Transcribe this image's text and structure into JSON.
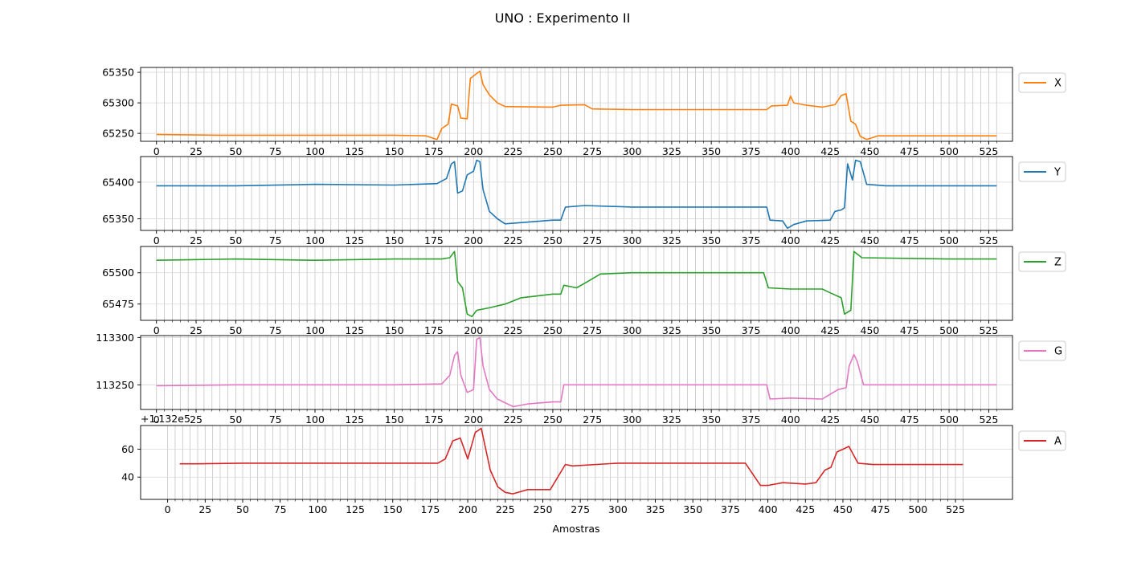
{
  "chart_data": {
    "type": "line",
    "title": "UNO : Experimento II",
    "xlabel": "Amostras",
    "x_ticks": [
      0,
      25,
      50,
      75,
      100,
      125,
      150,
      175,
      200,
      225,
      250,
      275,
      300,
      325,
      350,
      375,
      400,
      425,
      450,
      475,
      500,
      525
    ],
    "x_tick_labels": [
      "0",
      "25",
      "50",
      "75",
      "100",
      "125",
      "150",
      "175",
      "200",
      "225",
      "250",
      "275",
      "300",
      "325",
      "350",
      "375",
      "400",
      "425",
      "450",
      "475",
      "500",
      "525"
    ],
    "grid": "on",
    "legend_position": "right",
    "panels": [
      {
        "series_name": "X",
        "color": "#ff7f0e",
        "xlim": [
          -10,
          540
        ],
        "ylim": [
          65237,
          65358
        ],
        "y_ticks": [
          65250,
          65300,
          65350
        ],
        "y_tick_labels": [
          "65250",
          "65300",
          "65350"
        ],
        "offset_label": "",
        "points": [
          [
            0,
            65248
          ],
          [
            40,
            65247
          ],
          [
            80,
            65247
          ],
          [
            100,
            65247
          ],
          [
            150,
            65247
          ],
          [
            170,
            65246
          ],
          [
            177,
            65240
          ],
          [
            180,
            65258
          ],
          [
            184,
            65265
          ],
          [
            186,
            65298
          ],
          [
            190,
            65295
          ],
          [
            192,
            65275
          ],
          [
            196,
            65274
          ],
          [
            198,
            65340
          ],
          [
            202,
            65348
          ],
          [
            204,
            65352
          ],
          [
            206,
            65330
          ],
          [
            210,
            65313
          ],
          [
            215,
            65300
          ],
          [
            220,
            65294
          ],
          [
            250,
            65293
          ],
          [
            255,
            65296
          ],
          [
            270,
            65297
          ],
          [
            275,
            65290
          ],
          [
            300,
            65289
          ],
          [
            350,
            65289
          ],
          [
            385,
            65289
          ],
          [
            388,
            65295
          ],
          [
            398,
            65296
          ],
          [
            400,
            65311
          ],
          [
            402,
            65300
          ],
          [
            410,
            65296
          ],
          [
            420,
            65293
          ],
          [
            428,
            65297
          ],
          [
            432,
            65312
          ],
          [
            435,
            65315
          ],
          [
            438,
            65270
          ],
          [
            441,
            65265
          ],
          [
            444,
            65245
          ],
          [
            448,
            65240
          ],
          [
            455,
            65246
          ],
          [
            500,
            65246
          ],
          [
            530,
            65246
          ]
        ]
      },
      {
        "series_name": "Y",
        "color": "#1f77b4",
        "xlim": [
          -10,
          540
        ],
        "ylim": [
          65334,
          65435
        ],
        "y_ticks": [
          65350,
          65400
        ],
        "y_tick_labels": [
          "65350",
          "65400"
        ],
        "offset_label": "",
        "points": [
          [
            0,
            65395
          ],
          [
            50,
            65395
          ],
          [
            100,
            65397
          ],
          [
            150,
            65396
          ],
          [
            177,
            65398
          ],
          [
            183,
            65405
          ],
          [
            186,
            65425
          ],
          [
            188,
            65428
          ],
          [
            190,
            65385
          ],
          [
            193,
            65388
          ],
          [
            196,
            65410
          ],
          [
            200,
            65415
          ],
          [
            202,
            65430
          ],
          [
            204,
            65428
          ],
          [
            206,
            65390
          ],
          [
            210,
            65360
          ],
          [
            215,
            65350
          ],
          [
            220,
            65343
          ],
          [
            250,
            65348
          ],
          [
            255,
            65348
          ],
          [
            258,
            65366
          ],
          [
            270,
            65368
          ],
          [
            300,
            65366
          ],
          [
            350,
            65366
          ],
          [
            385,
            65366
          ],
          [
            387,
            65348
          ],
          [
            395,
            65347
          ],
          [
            398,
            65337
          ],
          [
            402,
            65342
          ],
          [
            410,
            65347
          ],
          [
            425,
            65348
          ],
          [
            428,
            65360
          ],
          [
            432,
            65362
          ],
          [
            434,
            65365
          ],
          [
            436,
            65425
          ],
          [
            439,
            65403
          ],
          [
            441,
            65430
          ],
          [
            444,
            65428
          ],
          [
            448,
            65397
          ],
          [
            460,
            65395
          ],
          [
            500,
            65395
          ],
          [
            530,
            65395
          ]
        ]
      },
      {
        "series_name": "Z",
        "color": "#2ca02c",
        "xlim": [
          -10,
          540
        ],
        "ylim": [
          65462,
          65521
        ],
        "y_ticks": [
          65475,
          65500
        ],
        "y_tick_labels": [
          "65475",
          "65500"
        ],
        "offset_label": "",
        "points": [
          [
            0,
            65510
          ],
          [
            50,
            65511
          ],
          [
            100,
            65510
          ],
          [
            150,
            65511
          ],
          [
            180,
            65511
          ],
          [
            185,
            65512
          ],
          [
            188,
            65517
          ],
          [
            190,
            65493
          ],
          [
            193,
            65488
          ],
          [
            196,
            65467
          ],
          [
            199,
            65465
          ],
          [
            202,
            65470
          ],
          [
            210,
            65472
          ],
          [
            220,
            65475
          ],
          [
            230,
            65480
          ],
          [
            250,
            65483
          ],
          [
            255,
            65483
          ],
          [
            257,
            65490
          ],
          [
            265,
            65488
          ],
          [
            272,
            65493
          ],
          [
            280,
            65499
          ],
          [
            300,
            65500
          ],
          [
            350,
            65500
          ],
          [
            383,
            65500
          ],
          [
            386,
            65488
          ],
          [
            400,
            65487
          ],
          [
            420,
            65487
          ],
          [
            425,
            65484
          ],
          [
            432,
            65480
          ],
          [
            434,
            65467
          ],
          [
            438,
            65470
          ],
          [
            440,
            65517
          ],
          [
            445,
            65512
          ],
          [
            500,
            65511
          ],
          [
            530,
            65511
          ]
        ]
      },
      {
        "series_name": "G",
        "color": "#e377c2",
        "xlim": [
          -10,
          540
        ],
        "ylim": [
          113224,
          113302
        ],
        "y_ticks": [
          113250,
          113300
        ],
        "y_tick_labels": [
          "113250",
          "113300"
        ],
        "offset_label": "",
        "points": [
          [
            0,
            113249
          ],
          [
            50,
            113250
          ],
          [
            100,
            113250
          ],
          [
            150,
            113250
          ],
          [
            180,
            113251
          ],
          [
            185,
            113260
          ],
          [
            188,
            113281
          ],
          [
            190,
            113285
          ],
          [
            192,
            113260
          ],
          [
            196,
            113242
          ],
          [
            200,
            113245
          ],
          [
            202,
            113298
          ],
          [
            204,
            113300
          ],
          [
            206,
            113270
          ],
          [
            210,
            113245
          ],
          [
            215,
            113235
          ],
          [
            225,
            113227
          ],
          [
            235,
            113230
          ],
          [
            250,
            113232
          ],
          [
            255,
            113232
          ],
          [
            257,
            113250
          ],
          [
            300,
            113250
          ],
          [
            350,
            113250
          ],
          [
            385,
            113250
          ],
          [
            387,
            113235
          ],
          [
            400,
            113236
          ],
          [
            420,
            113235
          ],
          [
            425,
            113240
          ],
          [
            430,
            113245
          ],
          [
            435,
            113247
          ],
          [
            437,
            113270
          ],
          [
            440,
            113282
          ],
          [
            442,
            113275
          ],
          [
            446,
            113250
          ],
          [
            450,
            113250
          ],
          [
            500,
            113250
          ],
          [
            530,
            113250
          ]
        ]
      },
      {
        "series_name": "A",
        "color": "#d62728",
        "xlim": [
          -18,
          563
        ],
        "ylim": [
          24,
          77
        ],
        "y_ticks": [
          40,
          60
        ],
        "y_tick_labels": [
          "40",
          "60"
        ],
        "offset_label": "+1.132e5",
        "points": [
          [
            8,
            49.5
          ],
          [
            20,
            49.5
          ],
          [
            50,
            50
          ],
          [
            100,
            50
          ],
          [
            140,
            50
          ],
          [
            175,
            50
          ],
          [
            180,
            50
          ],
          [
            185,
            53
          ],
          [
            190,
            66
          ],
          [
            195,
            68
          ],
          [
            200,
            53
          ],
          [
            205,
            72
          ],
          [
            209,
            75
          ],
          [
            215,
            45
          ],
          [
            220,
            33
          ],
          [
            225,
            29
          ],
          [
            230,
            28
          ],
          [
            240,
            31
          ],
          [
            250,
            31
          ],
          [
            255,
            31
          ],
          [
            265,
            49
          ],
          [
            270,
            48
          ],
          [
            300,
            50
          ],
          [
            350,
            50
          ],
          [
            385,
            50
          ],
          [
            395,
            34
          ],
          [
            400,
            34
          ],
          [
            410,
            36
          ],
          [
            425,
            35
          ],
          [
            432,
            36
          ],
          [
            438,
            45
          ],
          [
            442,
            47
          ],
          [
            446,
            58
          ],
          [
            450,
            60
          ],
          [
            454,
            62
          ],
          [
            460,
            50
          ],
          [
            470,
            49
          ],
          [
            500,
            49
          ],
          [
            525,
            49
          ],
          [
            530,
            49
          ]
        ]
      }
    ]
  }
}
